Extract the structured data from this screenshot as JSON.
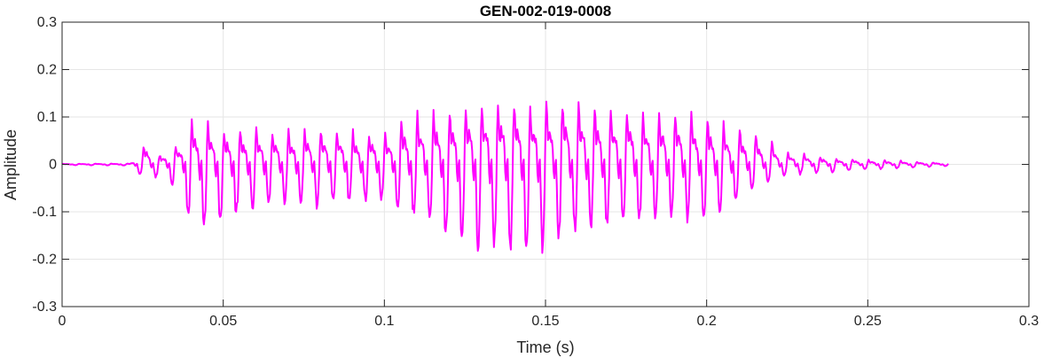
{
  "chart_data": {
    "type": "line",
    "title": "GEN-002-019-0008",
    "xlabel": "Time (s)",
    "ylabel": "Amplitude",
    "xlim": [
      0,
      0.3
    ],
    "ylim": [
      -0.3,
      0.3
    ],
    "xticks": [
      0,
      0.05,
      0.1,
      0.15,
      0.2,
      0.25,
      0.3
    ],
    "xtick_labels": [
      "0",
      "0.05",
      "0.1",
      "0.15",
      "0.2",
      "0.25",
      "0.3"
    ],
    "yticks": [
      -0.3,
      -0.2,
      -0.1,
      0,
      0.1,
      0.2,
      0.3
    ],
    "ytick_labels": [
      "-0.3",
      "-0.2",
      "-0.1",
      "0",
      "0.1",
      "0.2",
      "0.3"
    ],
    "grid": true,
    "series": [
      {
        "color": "#ff00ff",
        "x_end": 0.275,
        "sample_step": 0.00025,
        "envelope_points": [
          [
            0,
            0.002,
            0.002
          ],
          [
            0.021,
            0.003,
            0.003
          ],
          [
            0.024,
            0.03,
            0.03
          ],
          [
            0.026,
            0.07,
            0.045
          ],
          [
            0.03,
            0.03,
            0.03
          ],
          [
            0.035,
            0.06,
            0.06
          ],
          [
            0.038,
            0.1,
            0.12
          ],
          [
            0.04,
            0.15,
            0.17
          ],
          [
            0.043,
            0.145,
            0.19
          ],
          [
            0.05,
            0.12,
            0.15
          ],
          [
            0.06,
            0.115,
            0.12
          ],
          [
            0.07,
            0.11,
            0.11
          ],
          [
            0.08,
            0.12,
            0.11
          ],
          [
            0.09,
            0.11,
            0.1
          ],
          [
            0.1,
            0.105,
            0.1
          ],
          [
            0.105,
            0.14,
            0.12
          ],
          [
            0.11,
            0.17,
            0.14
          ],
          [
            0.12,
            0.185,
            0.2
          ],
          [
            0.13,
            0.2,
            0.225
          ],
          [
            0.137,
            0.225,
            0.24
          ],
          [
            0.145,
            0.21,
            0.24
          ],
          [
            0.15,
            0.205,
            0.22
          ],
          [
            0.16,
            0.215,
            0.18
          ],
          [
            0.17,
            0.185,
            0.17
          ],
          [
            0.18,
            0.175,
            0.16
          ],
          [
            0.19,
            0.175,
            0.15
          ],
          [
            0.2,
            0.155,
            0.14
          ],
          [
            0.21,
            0.12,
            0.1
          ],
          [
            0.215,
            0.1,
            0.06
          ],
          [
            0.22,
            0.075,
            0.04
          ],
          [
            0.225,
            0.04,
            0.03
          ],
          [
            0.23,
            0.035,
            0.025
          ],
          [
            0.24,
            0.02,
            0.02
          ],
          [
            0.25,
            0.015,
            0.013
          ],
          [
            0.26,
            0.012,
            0.01
          ],
          [
            0.275,
            0.004,
            0.004
          ]
        ],
        "pitch_hz": 200
      }
    ]
  }
}
